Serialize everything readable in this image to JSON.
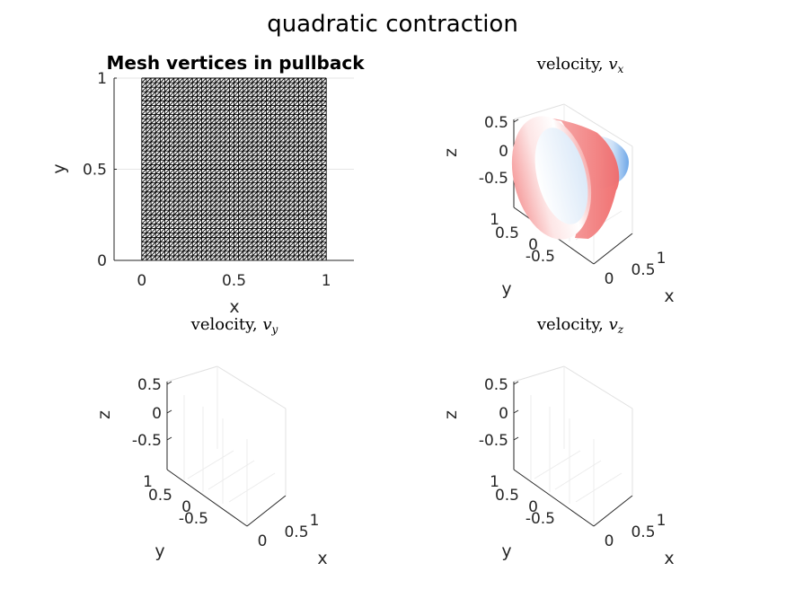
{
  "figure": {
    "suptitle": "quadratic contraction"
  },
  "chart_data": [
    {
      "type": "scatter",
      "title": "Mesh vertices in pullback",
      "xlabel": "x",
      "ylabel": "y",
      "xlim": [
        -0.15,
        1.15
      ],
      "ylim": [
        0,
        1
      ],
      "x_ticks": [
        "0",
        "0.5",
        "1"
      ],
      "y_ticks": [
        "0",
        "0.5",
        "1"
      ],
      "x_tick_values": [
        0,
        0.5,
        1
      ],
      "y_tick_values": [
        0,
        0.5,
        1
      ],
      "mesh": {
        "x_range": [
          0,
          1
        ],
        "y_range": [
          0,
          1
        ],
        "divisions": 40
      },
      "grid": true
    },
    {
      "type": "surface3d",
      "title_prefix": "velocity, ",
      "title_var": "v",
      "title_sub": "x",
      "xlabel": "x",
      "ylabel": "y",
      "zlabel": "z",
      "x_ticks": [
        "0",
        "0.5",
        "1"
      ],
      "y_ticks": [
        "-0.5",
        "0",
        "0.5",
        "1"
      ],
      "z_ticks": [
        "-0.5",
        "0",
        "0.5"
      ],
      "colormap": {
        "negative": "#6fa8e8",
        "zero": "#ffffff",
        "positive": "#f27a7a"
      },
      "grid": true
    },
    {
      "type": "surface3d",
      "title_prefix": "velocity, ",
      "title_var": "v",
      "title_sub": "y",
      "xlabel": "x",
      "ylabel": "y",
      "zlabel": "z",
      "x_ticks": [
        "0",
        "0.5",
        "1"
      ],
      "y_ticks": [
        "-0.5",
        "0",
        "0.5",
        "1"
      ],
      "z_ticks": [
        "-0.5",
        "0",
        "0.5"
      ],
      "grid": true
    },
    {
      "type": "surface3d",
      "title_prefix": "velocity, ",
      "title_var": "v",
      "title_sub": "z",
      "xlabel": "x",
      "ylabel": "y",
      "zlabel": "z",
      "x_ticks": [
        "0",
        "0.5",
        "1"
      ],
      "y_ticks": [
        "-0.5",
        "0",
        "0.5",
        "1"
      ],
      "z_ticks": [
        "-0.5",
        "0",
        "0.5"
      ],
      "grid": true
    }
  ]
}
